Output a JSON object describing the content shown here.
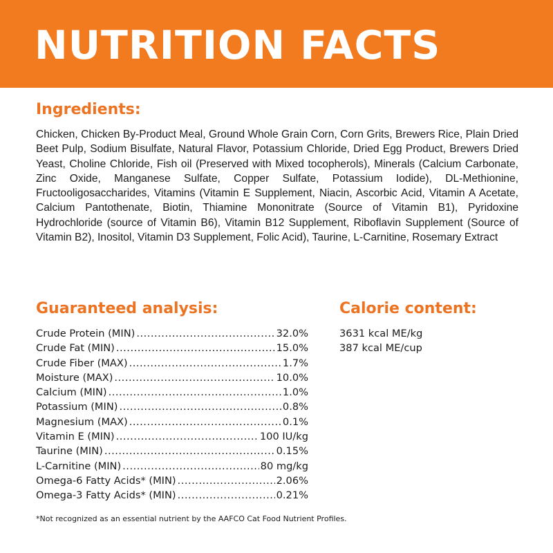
{
  "header": {
    "title": "NUTRITION FACTS",
    "color": "#F27A1F"
  },
  "ingredients": {
    "heading": "Ingredients:",
    "text": "Chicken, Chicken By-Product Meal, Ground Whole Grain Corn, Corn Grits, Brewers Rice, Plain Dried Beet Pulp, Sodium Bisulfate, Natural Flavor, Potassium Chloride, Dried Egg Product, Brewers Dried Yeast, Choline Chloride, Fish oil (Preserved with Mixed tocopherols), Minerals (Calcium Carbonate, Zinc Oxide, Manganese Sulfate, Copper Sulfate, Potassium Iodide), DL-Methionine, Fructooligosaccharides, Vitamins (Vitamin E Supplement, Niacin, Ascorbic Acid, Vitamin A Acetate, Calcium Pantothenate, Biotin, Thiamine Mononitrate (Source of Vitamin B1), Pyridoxine Hydrochloride (source of Vitamin B6), Vitamin B12 Supplement, Riboflavin Supplement (Source of Vitamin B2), Inositol, Vitamin D3 Supplement, Folic Acid), Taurine, L-Carnitine, Rosemary Extract"
  },
  "analysis": {
    "heading": "Guaranteed analysis:",
    "rows": [
      {
        "label": "Crude Protein (MIN)",
        "value": "32.0%"
      },
      {
        "label": "Crude Fat (MIN)",
        "value": "15.0%"
      },
      {
        "label": "Crude Fiber (MAX)",
        "value": "1.7%"
      },
      {
        "label": "Moisture (MAX)",
        "value": "10.0%"
      },
      {
        "label": "Calcium (MIN)",
        "value": "1.0%"
      },
      {
        "label": "Potassium (MIN)",
        "value": "0.8%"
      },
      {
        "label": "Magnesium (MAX)",
        "value": "0.1%"
      },
      {
        "label": "Vitamin E (MIN)",
        "value": "100 IU/kg"
      },
      {
        "label": "Taurine (MIN)",
        "value": "0.15%"
      },
      {
        "label": "L-Carnitine (MIN)",
        "value": "80 mg/kg"
      },
      {
        "label": "Omega-6 Fatty Acids* (MIN)",
        "value": "2.06%"
      },
      {
        "label": "Omega-3 Fatty Acids* (MIN)",
        "value": "0.21%"
      }
    ]
  },
  "calorie": {
    "heading": "Calorie content:",
    "lines": [
      "3631 kcal ME/kg",
      "387 kcal ME/cup"
    ]
  },
  "footnote": "*Not recognized as an essential nutrient by the AAFCO Cat Food Nutrient Profiles.",
  "accent_color": "#EC7322"
}
